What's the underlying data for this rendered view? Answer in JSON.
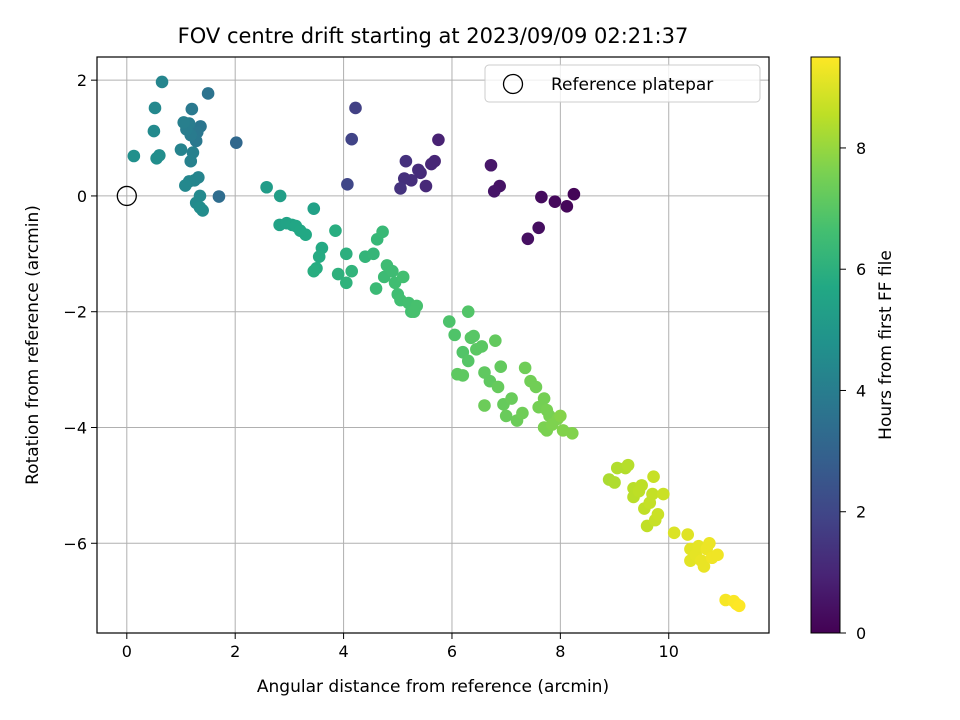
{
  "chart_data": {
    "type": "scatter",
    "title": "FOV centre drift starting at 2023/09/09 02:21:37",
    "xlabel": "Angular distance from reference (arcmin)",
    "ylabel": "Rotation from reference (arcmin)",
    "xlim": [
      -0.55,
      11.85
    ],
    "ylim": [
      -7.55,
      2.4
    ],
    "xticks": [
      0,
      2,
      4,
      6,
      8,
      10
    ],
    "yticks": [
      -6,
      -4,
      -2,
      0,
      2
    ],
    "xtick_labels": [
      "0",
      "2",
      "4",
      "6",
      "8",
      "10"
    ],
    "ytick_labels": [
      "−6",
      "−4",
      "−2",
      "0",
      "2"
    ],
    "grid": true,
    "legend": {
      "position": "upper right",
      "entries": [
        {
          "label": "Reference platepar",
          "marker": "open-circle"
        }
      ]
    },
    "reference_point": {
      "x": 0,
      "y": 0
    },
    "colorbar": {
      "label": "Hours from first FF file",
      "colormap": "viridis",
      "range": [
        0,
        9.5
      ],
      "ticks": [
        0,
        2,
        4,
        6,
        8
      ],
      "tick_labels": [
        "0",
        "2",
        "4",
        "6",
        "8"
      ]
    },
    "points": [
      {
        "x": 8.25,
        "y": 0.03,
        "c": 0.1
      },
      {
        "x": 8.12,
        "y": -0.18,
        "c": 0.15
      },
      {
        "x": 7.9,
        "y": -0.1,
        "c": 0.2
      },
      {
        "x": 7.65,
        "y": -0.02,
        "c": 0.3
      },
      {
        "x": 7.6,
        "y": -0.55,
        "c": 0.35
      },
      {
        "x": 7.4,
        "y": -0.74,
        "c": 0.4
      },
      {
        "x": 6.88,
        "y": 0.17,
        "c": 0.5
      },
      {
        "x": 6.78,
        "y": 0.08,
        "c": 0.55
      },
      {
        "x": 6.72,
        "y": 0.53,
        "c": 0.6
      },
      {
        "x": 5.75,
        "y": 0.97,
        "c": 0.9
      },
      {
        "x": 5.68,
        "y": 0.6,
        "c": 1.0
      },
      {
        "x": 5.62,
        "y": 0.55,
        "c": 1.05
      },
      {
        "x": 5.52,
        "y": 0.17,
        "c": 1.1
      },
      {
        "x": 5.42,
        "y": 0.4,
        "c": 1.15
      },
      {
        "x": 5.38,
        "y": 0.45,
        "c": 1.2
      },
      {
        "x": 5.25,
        "y": 0.27,
        "c": 1.25
      },
      {
        "x": 5.12,
        "y": 0.3,
        "c": 1.3
      },
      {
        "x": 5.15,
        "y": 0.6,
        "c": 1.35
      },
      {
        "x": 5.05,
        "y": 0.13,
        "c": 1.4
      },
      {
        "x": 4.22,
        "y": 1.52,
        "c": 1.8
      },
      {
        "x": 4.15,
        "y": 0.98,
        "c": 1.9
      },
      {
        "x": 4.07,
        "y": 0.2,
        "c": 2.0
      },
      {
        "x": 2.02,
        "y": 0.92,
        "c": 3.2
      },
      {
        "x": 1.7,
        "y": -0.01,
        "c": 3.4
      },
      {
        "x": 1.5,
        "y": 1.77,
        "c": 3.6
      },
      {
        "x": 1.36,
        "y": 1.2,
        "c": 3.7
      },
      {
        "x": 1.3,
        "y": 1.1,
        "c": 3.75
      },
      {
        "x": 1.28,
        "y": 0.95,
        "c": 3.8
      },
      {
        "x": 1.2,
        "y": 1.5,
        "c": 3.85
      },
      {
        "x": 1.18,
        "y": 1.05,
        "c": 3.9
      },
      {
        "x": 1.15,
        "y": 1.25,
        "c": 3.95
      },
      {
        "x": 1.1,
        "y": 1.15,
        "c": 4.0
      },
      {
        "x": 1.05,
        "y": 1.27,
        "c": 4.05
      },
      {
        "x": 1.22,
        "y": 0.75,
        "c": 4.1
      },
      {
        "x": 1.18,
        "y": 0.6,
        "c": 4.15
      },
      {
        "x": 1.0,
        "y": 0.8,
        "c": 4.2
      },
      {
        "x": 1.32,
        "y": 0.32,
        "c": 4.25
      },
      {
        "x": 1.25,
        "y": 0.27,
        "c": 4.3
      },
      {
        "x": 1.15,
        "y": 0.25,
        "c": 4.35
      },
      {
        "x": 1.08,
        "y": 0.18,
        "c": 4.4
      },
      {
        "x": 1.35,
        "y": 0.0,
        "c": 4.45
      },
      {
        "x": 1.28,
        "y": -0.12,
        "c": 4.5
      },
      {
        "x": 1.4,
        "y": -0.25,
        "c": 4.55
      },
      {
        "x": 1.35,
        "y": -0.2,
        "c": 4.6
      },
      {
        "x": 0.65,
        "y": 1.97,
        "c": 4.3
      },
      {
        "x": 0.52,
        "y": 1.52,
        "c": 4.4
      },
      {
        "x": 0.5,
        "y": 1.12,
        "c": 4.5
      },
      {
        "x": 0.6,
        "y": 0.7,
        "c": 4.6
      },
      {
        "x": 0.55,
        "y": 0.65,
        "c": 4.65
      },
      {
        "x": 0.13,
        "y": 0.69,
        "c": 4.7
      },
      {
        "x": 2.58,
        "y": 0.15,
        "c": 5.2
      },
      {
        "x": 2.83,
        "y": 0.0,
        "c": 5.3
      },
      {
        "x": 3.45,
        "y": -0.22,
        "c": 5.4
      },
      {
        "x": 2.82,
        "y": -0.5,
        "c": 5.45
      },
      {
        "x": 2.95,
        "y": -0.47,
        "c": 5.5
      },
      {
        "x": 3.05,
        "y": -0.5,
        "c": 5.55
      },
      {
        "x": 3.12,
        "y": -0.52,
        "c": 5.6
      },
      {
        "x": 3.2,
        "y": -0.6,
        "c": 5.65
      },
      {
        "x": 3.3,
        "y": -0.67,
        "c": 5.7
      },
      {
        "x": 3.6,
        "y": -0.9,
        "c": 5.75
      },
      {
        "x": 3.55,
        "y": -1.05,
        "c": 5.8
      },
      {
        "x": 3.5,
        "y": -1.25,
        "c": 5.85
      },
      {
        "x": 3.45,
        "y": -1.3,
        "c": 5.9
      },
      {
        "x": 3.85,
        "y": -0.6,
        "c": 5.9
      },
      {
        "x": 4.05,
        "y": -1.0,
        "c": 6.0
      },
      {
        "x": 3.9,
        "y": -1.35,
        "c": 6.05
      },
      {
        "x": 4.05,
        "y": -1.5,
        "c": 6.1
      },
      {
        "x": 4.15,
        "y": -1.3,
        "c": 6.15
      },
      {
        "x": 4.4,
        "y": -1.05,
        "c": 6.2
      },
      {
        "x": 4.55,
        "y": -1.0,
        "c": 6.25
      },
      {
        "x": 4.62,
        "y": -0.75,
        "c": 6.3
      },
      {
        "x": 4.72,
        "y": -0.62,
        "c": 6.35
      },
      {
        "x": 4.6,
        "y": -1.6,
        "c": 6.4
      },
      {
        "x": 4.75,
        "y": -1.4,
        "c": 6.45
      },
      {
        "x": 4.8,
        "y": -1.2,
        "c": 6.5
      },
      {
        "x": 4.9,
        "y": -1.3,
        "c": 6.5
      },
      {
        "x": 4.95,
        "y": -1.5,
        "c": 6.55
      },
      {
        "x": 5.0,
        "y": -1.7,
        "c": 6.55
      },
      {
        "x": 5.05,
        "y": -1.8,
        "c": 6.6
      },
      {
        "x": 5.1,
        "y": -1.4,
        "c": 6.6
      },
      {
        "x": 5.2,
        "y": -1.85,
        "c": 6.65
      },
      {
        "x": 5.25,
        "y": -2.0,
        "c": 6.65
      },
      {
        "x": 5.35,
        "y": -1.9,
        "c": 6.7
      },
      {
        "x": 5.3,
        "y": -2.0,
        "c": 6.7
      },
      {
        "x": 5.95,
        "y": -2.17,
        "c": 6.8
      },
      {
        "x": 6.05,
        "y": -2.4,
        "c": 6.85
      },
      {
        "x": 6.3,
        "y": -2.0,
        "c": 6.9
      },
      {
        "x": 6.2,
        "y": -2.7,
        "c": 6.9
      },
      {
        "x": 6.3,
        "y": -2.85,
        "c": 6.95
      },
      {
        "x": 6.35,
        "y": -2.45,
        "c": 7.0
      },
      {
        "x": 6.4,
        "y": -2.42,
        "c": 7.0
      },
      {
        "x": 6.45,
        "y": -2.65,
        "c": 7.05
      },
      {
        "x": 6.55,
        "y": -2.6,
        "c": 7.05
      },
      {
        "x": 6.1,
        "y": -3.08,
        "c": 7.1
      },
      {
        "x": 6.2,
        "y": -3.1,
        "c": 7.1
      },
      {
        "x": 6.6,
        "y": -3.05,
        "c": 7.15
      },
      {
        "x": 6.7,
        "y": -3.2,
        "c": 7.15
      },
      {
        "x": 6.8,
        "y": -2.5,
        "c": 7.2
      },
      {
        "x": 6.9,
        "y": -2.95,
        "c": 7.2
      },
      {
        "x": 6.85,
        "y": -3.3,
        "c": 7.25
      },
      {
        "x": 6.95,
        "y": -3.6,
        "c": 7.25
      },
      {
        "x": 7.0,
        "y": -3.8,
        "c": 7.3
      },
      {
        "x": 7.1,
        "y": -3.5,
        "c": 7.3
      },
      {
        "x": 6.6,
        "y": -3.62,
        "c": 7.35
      },
      {
        "x": 7.2,
        "y": -3.88,
        "c": 7.35
      },
      {
        "x": 7.3,
        "y": -3.75,
        "c": 7.4
      },
      {
        "x": 7.35,
        "y": -2.97,
        "c": 7.4
      },
      {
        "x": 7.45,
        "y": -3.2,
        "c": 7.45
      },
      {
        "x": 7.55,
        "y": -3.3,
        "c": 7.45
      },
      {
        "x": 7.6,
        "y": -3.65,
        "c": 7.5
      },
      {
        "x": 7.7,
        "y": -3.5,
        "c": 7.5
      },
      {
        "x": 7.75,
        "y": -3.7,
        "c": 7.55
      },
      {
        "x": 7.8,
        "y": -3.8,
        "c": 7.55
      },
      {
        "x": 7.7,
        "y": -4.0,
        "c": 7.6
      },
      {
        "x": 7.75,
        "y": -4.05,
        "c": 7.6
      },
      {
        "x": 7.85,
        "y": -3.95,
        "c": 7.65
      },
      {
        "x": 7.95,
        "y": -3.85,
        "c": 7.65
      },
      {
        "x": 8.05,
        "y": -4.05,
        "c": 7.7
      },
      {
        "x": 8.22,
        "y": -4.1,
        "c": 7.7
      },
      {
        "x": 8.0,
        "y": -3.8,
        "c": 7.75
      },
      {
        "x": 8.9,
        "y": -4.9,
        "c": 8.3
      },
      {
        "x": 9.0,
        "y": -4.95,
        "c": 8.35
      },
      {
        "x": 9.05,
        "y": -4.7,
        "c": 8.4
      },
      {
        "x": 9.2,
        "y": -4.7,
        "c": 8.4
      },
      {
        "x": 9.25,
        "y": -4.65,
        "c": 8.45
      },
      {
        "x": 9.35,
        "y": -5.05,
        "c": 8.5
      },
      {
        "x": 9.35,
        "y": -5.2,
        "c": 8.5
      },
      {
        "x": 9.45,
        "y": -5.1,
        "c": 8.55
      },
      {
        "x": 9.5,
        "y": -5.0,
        "c": 8.55
      },
      {
        "x": 9.55,
        "y": -5.4,
        "c": 8.6
      },
      {
        "x": 9.6,
        "y": -5.7,
        "c": 8.6
      },
      {
        "x": 9.65,
        "y": -5.3,
        "c": 8.65
      },
      {
        "x": 9.7,
        "y": -5.15,
        "c": 8.65
      },
      {
        "x": 9.72,
        "y": -4.85,
        "c": 8.7
      },
      {
        "x": 9.75,
        "y": -5.6,
        "c": 8.7
      },
      {
        "x": 9.8,
        "y": -5.5,
        "c": 8.75
      },
      {
        "x": 9.9,
        "y": -5.15,
        "c": 8.75
      },
      {
        "x": 10.1,
        "y": -5.82,
        "c": 9.0
      },
      {
        "x": 10.35,
        "y": -5.85,
        "c": 9.05
      },
      {
        "x": 10.4,
        "y": -6.1,
        "c": 9.1
      },
      {
        "x": 10.4,
        "y": -6.3,
        "c": 9.1
      },
      {
        "x": 10.5,
        "y": -6.2,
        "c": 9.15
      },
      {
        "x": 10.55,
        "y": -6.05,
        "c": 9.15
      },
      {
        "x": 10.6,
        "y": -6.3,
        "c": 9.2
      },
      {
        "x": 10.65,
        "y": -6.4,
        "c": 9.2
      },
      {
        "x": 10.7,
        "y": -6.1,
        "c": 9.25
      },
      {
        "x": 10.75,
        "y": -6.0,
        "c": 9.25
      },
      {
        "x": 10.8,
        "y": -6.25,
        "c": 9.3
      },
      {
        "x": 10.9,
        "y": -6.2,
        "c": 9.3
      },
      {
        "x": 11.05,
        "y": -6.98,
        "c": 9.4
      },
      {
        "x": 11.2,
        "y": -7.0,
        "c": 9.45
      },
      {
        "x": 11.25,
        "y": -7.05,
        "c": 9.45
      },
      {
        "x": 11.3,
        "y": -7.08,
        "c": 9.5
      }
    ]
  }
}
